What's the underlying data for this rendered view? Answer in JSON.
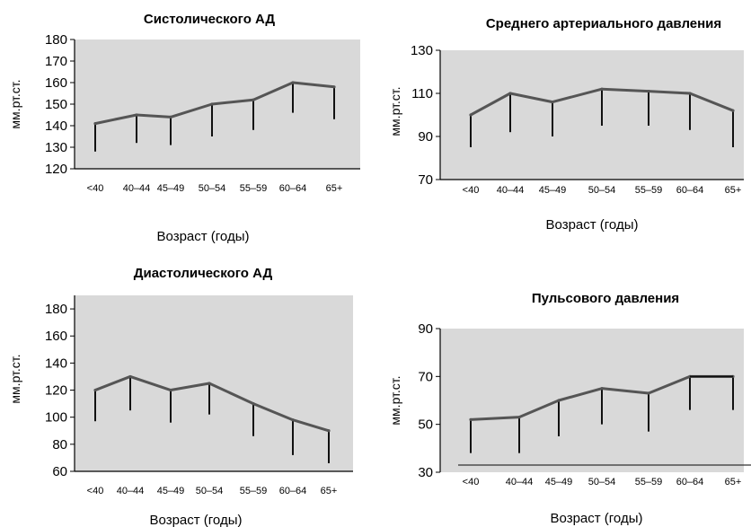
{
  "chart_data": [
    {
      "type": "line",
      "title": "Систолического АД",
      "ylabel": "мм.рт.ст.",
      "xlabel": "Возраст (годы)",
      "categories": [
        "<40",
        "40–44",
        "45–49",
        "50–54",
        "55–59",
        "60–64",
        "65+"
      ],
      "yticks": [
        120,
        130,
        140,
        150,
        160,
        170,
        180
      ],
      "ylim": [
        120,
        180
      ],
      "series": [
        {
          "values": [
            141,
            145,
            144,
            150,
            152,
            160,
            158
          ],
          "lower": [
            128,
            132,
            131,
            135,
            138,
            146,
            143
          ]
        }
      ],
      "background": "#d9d9d9",
      "grid": false
    },
    {
      "type": "line",
      "title": "Среднего артериального давления",
      "ylabel": "мм.рт.ст.",
      "xlabel": "Возраст (годы)",
      "categories": [
        "<40",
        "40–44",
        "45–49",
        "50–54",
        "55–59",
        "60–64",
        "65+"
      ],
      "yticks": [
        70,
        90,
        110,
        130
      ],
      "ylim": [
        70,
        130
      ],
      "series": [
        {
          "values": [
            100,
            110,
            106,
            112,
            111,
            110,
            102
          ],
          "lower": [
            85,
            92,
            90,
            95,
            95,
            93,
            85
          ]
        }
      ],
      "background": "#d9d9d9",
      "grid": false
    },
    {
      "type": "line",
      "title": "Диастолического АД",
      "ylabel": "мм.рт.ст.",
      "xlabel": "Возраст (годы)",
      "categories": [
        "<40",
        "40–44",
        "45–49",
        "50–54",
        "55–59",
        "60–64",
        "65+"
      ],
      "yticks": [
        60,
        80,
        100,
        120,
        140,
        160,
        180
      ],
      "ylim": [
        60,
        190
      ],
      "series": [
        {
          "values": [
            120,
            130,
            120,
            125,
            110,
            98,
            90
          ],
          "lower": [
            97,
            105,
            96,
            102,
            86,
            72,
            66
          ]
        }
      ],
      "background": "#d9d9d9",
      "grid": false
    },
    {
      "type": "line",
      "title": "Пульсового давления",
      "ylabel": "мм.рт.ст.",
      "xlabel": "Возраст (годы)",
      "categories": [
        "<40",
        "40–44",
        "45–49",
        "50–54",
        "55–59",
        "60–64",
        "65+"
      ],
      "yticks": [
        30,
        50,
        70,
        90
      ],
      "ylim": [
        30,
        90
      ],
      "series": [
        {
          "values": [
            52,
            53,
            60,
            65,
            63,
            70,
            70
          ],
          "lower": [
            38,
            38,
            45,
            50,
            47,
            56,
            56
          ]
        }
      ],
      "background": "#d9d9d9",
      "grid": false
    }
  ]
}
